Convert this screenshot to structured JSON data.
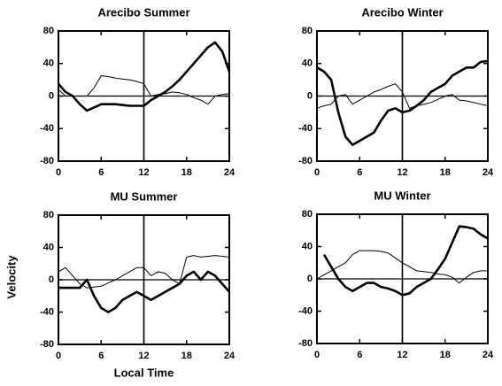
{
  "chart_data": [
    {
      "type": "line",
      "title": "Arecibo Summer",
      "x": [
        0,
        1,
        2,
        3,
        4,
        5,
        6,
        7,
        8,
        9,
        10,
        11,
        12,
        13,
        14,
        15,
        16,
        17,
        18,
        19,
        20,
        21,
        22,
        23,
        24
      ],
      "series": [
        {
          "color": "#000",
          "linewidth": 2.6,
          "values": [
            15,
            5,
            0,
            -10,
            -18,
            -14,
            -10,
            -10,
            -10,
            -11,
            -12,
            -12,
            -12,
            -5,
            0,
            5,
            12,
            20,
            30,
            40,
            50,
            60,
            66,
            55,
            30
          ]
        },
        {
          "color": "#000",
          "linewidth": 1,
          "values": [
            8,
            0,
            0,
            0,
            0,
            10,
            25,
            24,
            22,
            21,
            20,
            18,
            15,
            0,
            2,
            3,
            5,
            4,
            2,
            -2,
            -5,
            -10,
            0,
            2,
            3
          ]
        }
      ],
      "xlim": [
        0,
        24
      ],
      "xticks": [
        0,
        6,
        12,
        18,
        24
      ],
      "ylim": [
        -80,
        80
      ],
      "yticks": [
        -80,
        -40,
        0,
        40,
        80
      ],
      "vline": 12,
      "hline": 0
    },
    {
      "type": "line",
      "title": "Arecibo Winter",
      "x": [
        0,
        1,
        2,
        3,
        4,
        5,
        6,
        7,
        8,
        9,
        10,
        11,
        12,
        13,
        14,
        15,
        16,
        17,
        18,
        19,
        20,
        21,
        22,
        23,
        24
      ],
      "series": [
        {
          "color": "#000",
          "linewidth": 2.6,
          "values": [
            35,
            30,
            20,
            -20,
            -50,
            -60,
            -55,
            -50,
            -45,
            -30,
            -18,
            -15,
            -20,
            -18,
            -12,
            -5,
            5,
            10,
            15,
            25,
            30,
            35,
            35,
            42,
            43
          ]
        },
        {
          "color": "#000",
          "linewidth": 1,
          "values": [
            -15,
            -12,
            -10,
            0,
            2,
            -10,
            -5,
            0,
            5,
            8,
            12,
            15,
            5,
            -15,
            -12,
            -10,
            -8,
            -4,
            0,
            2,
            -5,
            -6,
            -8,
            -10,
            -12
          ]
        }
      ],
      "xlim": [
        0,
        24
      ],
      "xticks": [
        0,
        6,
        12,
        18,
        24
      ],
      "ylim": [
        -80,
        80
      ],
      "yticks": [
        -80,
        -40,
        0,
        40,
        80
      ],
      "vline": 12,
      "hline": 0
    },
    {
      "type": "line",
      "title": "MU Summer",
      "xlabel": "Local Time",
      "ylabel": "Velocity",
      "x": [
        0,
        1,
        2,
        3,
        4,
        5,
        6,
        7,
        8,
        9,
        10,
        11,
        12,
        13,
        14,
        15,
        16,
        17,
        18,
        19,
        20,
        21,
        22,
        23,
        24
      ],
      "series": [
        {
          "color": "#000",
          "linewidth": 2.6,
          "values": [
            -10,
            -10,
            -10,
            -10,
            0,
            -20,
            -35,
            -40,
            -35,
            -25,
            -20,
            -15,
            -20,
            -25,
            -20,
            -15,
            -10,
            -5,
            5,
            10,
            0,
            10,
            5,
            -5,
            -15
          ]
        },
        {
          "color": "#000",
          "linewidth": 1,
          "values": [
            10,
            15,
            5,
            -5,
            -10,
            -9,
            -8,
            -4,
            0,
            5,
            10,
            15,
            15,
            5,
            10,
            8,
            0,
            -5,
            28,
            30,
            28,
            29,
            30,
            29,
            28
          ]
        }
      ],
      "xlim": [
        0,
        24
      ],
      "xticks": [
        0,
        6,
        12,
        18,
        24
      ],
      "ylim": [
        -80,
        80
      ],
      "yticks": [
        -80,
        -40,
        0,
        40,
        80
      ],
      "vline": 12,
      "hline": 0
    },
    {
      "type": "line",
      "title": "MU Winter",
      "x": [
        0,
        1,
        2,
        3,
        4,
        5,
        6,
        7,
        8,
        9,
        10,
        11,
        12,
        13,
        14,
        15,
        16,
        17,
        18,
        19,
        20,
        21,
        22,
        23,
        24
      ],
      "series": [
        {
          "color": "#000",
          "linewidth": 2.6,
          "values": [
            null,
            30,
            15,
            0,
            -10,
            -15,
            -10,
            -5,
            -5,
            -10,
            -12,
            -15,
            -20,
            -18,
            -10,
            -5,
            0,
            12,
            25,
            45,
            65,
            64,
            62,
            55,
            50
          ]
        },
        {
          "color": "#000",
          "linewidth": 1,
          "values": [
            0,
            5,
            10,
            15,
            20,
            30,
            35,
            35,
            35,
            34,
            32,
            26,
            20,
            15,
            10,
            9,
            8,
            6,
            5,
            2,
            -5,
            2,
            8,
            10,
            10
          ]
        }
      ],
      "xlim": [
        0,
        24
      ],
      "xticks": [
        0,
        6,
        12,
        18,
        24
      ],
      "ylim": [
        -80,
        80
      ],
      "yticks": [
        -80,
        -40,
        0,
        40,
        80
      ],
      "vline": 12,
      "hline": 0
    }
  ]
}
